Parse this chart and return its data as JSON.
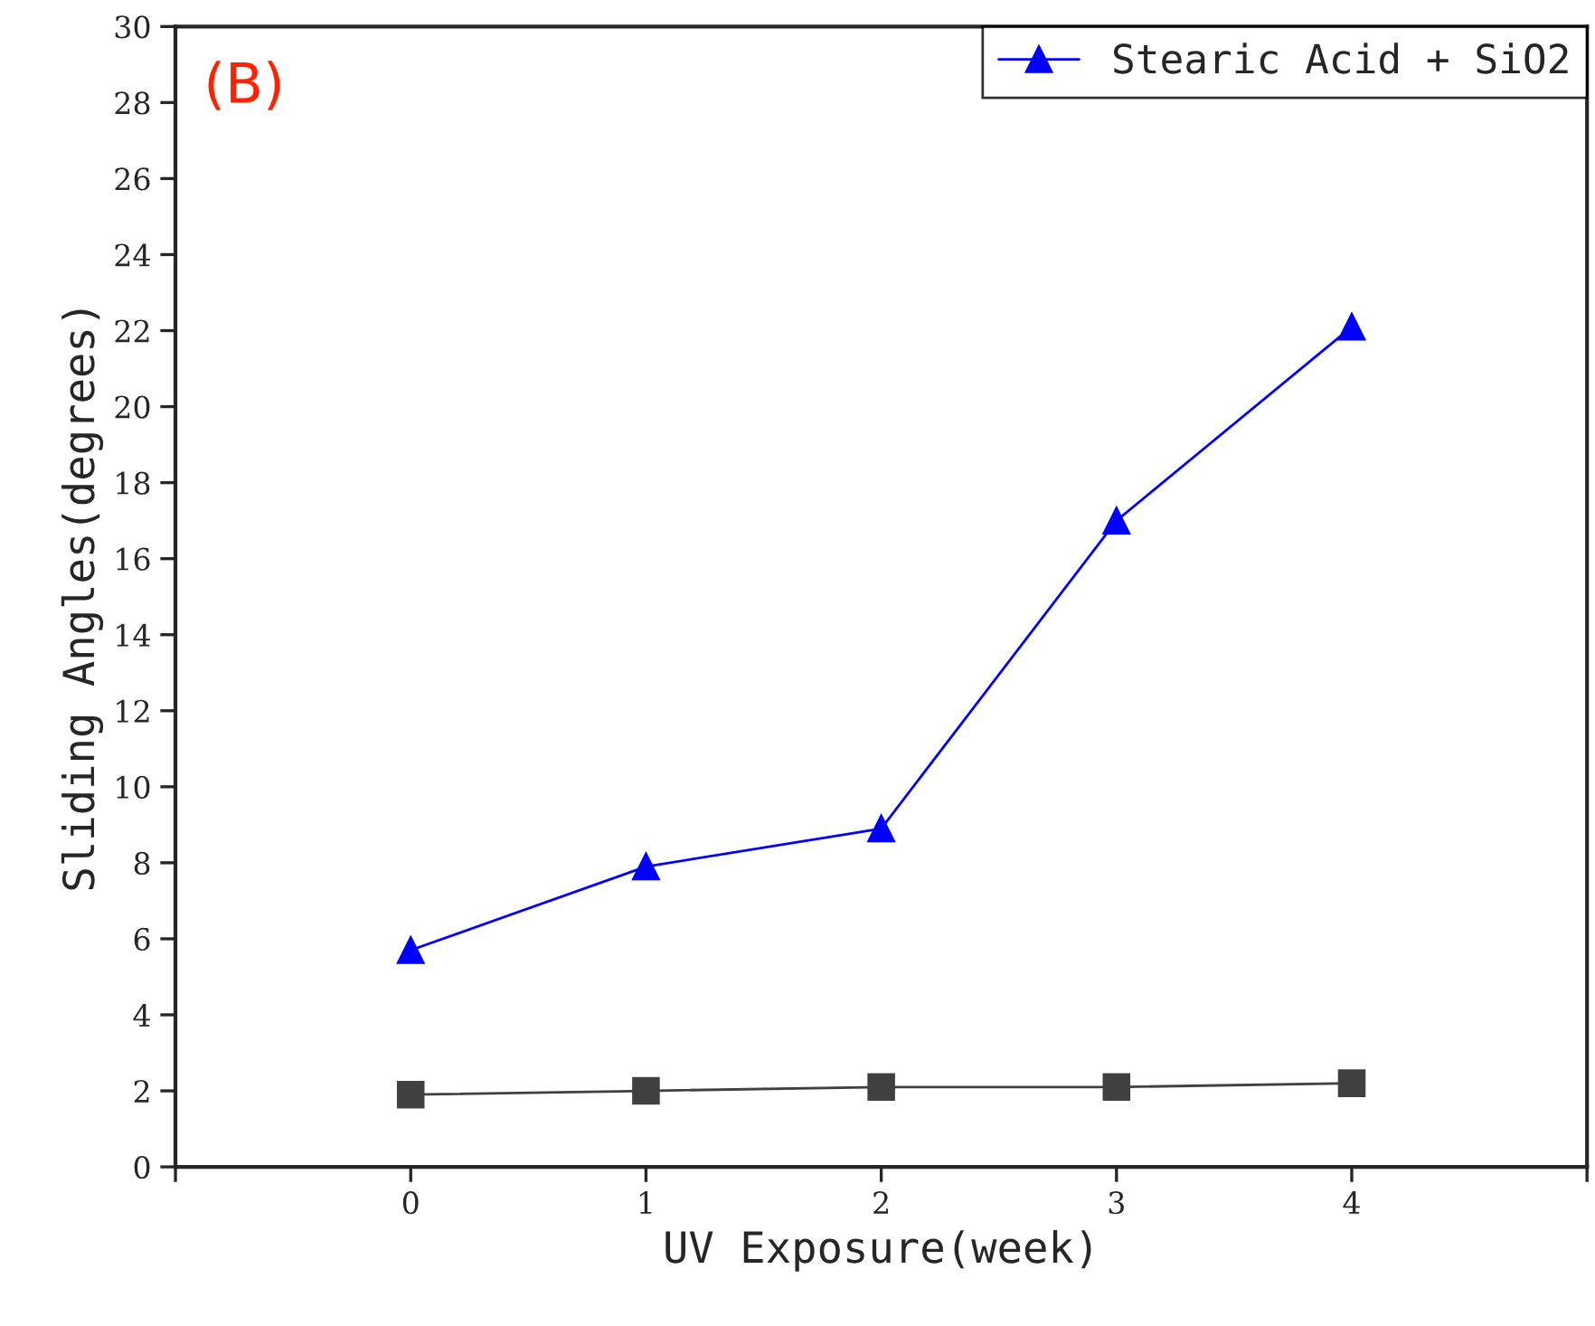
{
  "chart_data": {
    "type": "line",
    "xlabel": "UV Exposure(week)",
    "ylabel": "Sliding Angles(degrees)",
    "annotations": [
      "(B)"
    ],
    "x": [
      0,
      1,
      2,
      3,
      4
    ],
    "series": [
      {
        "color": "#404040",
        "values": [
          1.9,
          2.0,
          2.1,
          2.1,
          2.2
        ],
        "marker": "square"
      },
      {
        "name": "Stearic Acid + SiO2",
        "color": "#0000ff",
        "values": [
          5.7,
          7.9,
          8.9,
          17,
          22.1
        ],
        "marker": "triangle"
      }
    ],
    "xlim": [
      -1,
      5
    ],
    "xticks": [
      {
        "value": -1,
        "label": null
      },
      0,
      1,
      2,
      3,
      4,
      {
        "value": 5,
        "label": null
      }
    ],
    "ylim": [
      0,
      30
    ],
    "yticks": [
      0,
      2,
      4,
      6,
      8,
      10,
      12,
      14,
      16,
      18,
      20,
      22,
      24,
      26,
      28,
      30
    ],
    "grid": false,
    "legend": "top right",
    "line_style": "solid"
  }
}
